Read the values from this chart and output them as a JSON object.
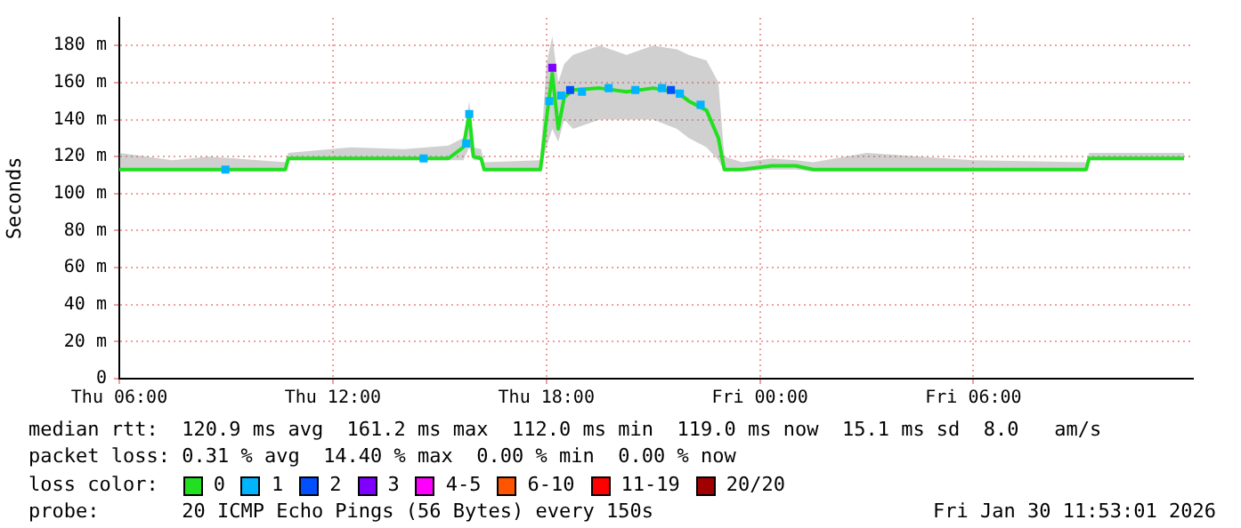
{
  "chart_data": {
    "type": "line",
    "ylabel": "Seconds",
    "xlim": [
      "2026-01-29T06:00",
      "2026-01-30T12:10"
    ],
    "xticks": [
      {
        "value": "2026-01-29T06:00",
        "label": "Thu 06:00"
      },
      {
        "value": "2026-01-29T12:00",
        "label": "Thu 12:00"
      },
      {
        "value": "2026-01-29T18:00",
        "label": "Thu 18:00"
      },
      {
        "value": "2026-01-30T00:00",
        "label": "Fri 00:00"
      },
      {
        "value": "2026-01-30T06:00",
        "label": "Fri 06:00"
      }
    ],
    "ylim": [
      0,
      195
    ],
    "yticks": [
      0,
      {
        "value": 20,
        "label": "20 m"
      },
      {
        "value": 40,
        "label": "40 m"
      },
      {
        "value": 60,
        "label": "60 m"
      },
      {
        "value": 80,
        "label": "80 m"
      },
      {
        "value": 100,
        "label": "100 m"
      },
      {
        "value": 120,
        "label": "120 m"
      },
      {
        "value": 140,
        "label": "140 m"
      },
      {
        "value": 160,
        "label": "160 m"
      },
      {
        "value": 180,
        "label": "180 m"
      }
    ],
    "grid": true,
    "legend": "bottom",
    "legend_title": "loss color:",
    "series": [
      {
        "name": "0",
        "color": "#20e020",
        "x": [
          "2026-01-29T06:00",
          "2026-01-29T07:30",
          "2026-01-29T08:30",
          "2026-01-29T10:40",
          "2026-01-29T10:45",
          "2026-01-29T12:30",
          "2026-01-29T14:00",
          "2026-01-29T15:15",
          "2026-01-29T15:40",
          "2026-01-29T15:50",
          "2026-01-29T15:57",
          "2026-01-29T16:10",
          "2026-01-29T16:15",
          "2026-01-29T17:50",
          "2026-01-29T18:00",
          "2026-01-29T18:10",
          "2026-01-29T18:20",
          "2026-01-29T18:30",
          "2026-01-29T18:45",
          "2026-01-29T19:30",
          "2026-01-29T20:15",
          "2026-01-29T21:00",
          "2026-01-29T21:40",
          "2026-01-29T22:00",
          "2026-01-29T22:30",
          "2026-01-29T22:50",
          "2026-01-29T23:00",
          "2026-01-29T23:30",
          "2026-01-30T00:20",
          "2026-01-30T01:00",
          "2026-01-30T01:30",
          "2026-01-30T03:00",
          "2026-01-30T04:30",
          "2026-01-30T06:00",
          "2026-01-30T09:10",
          "2026-01-30T09:15",
          "2026-01-30T11:55"
        ],
        "values": [
          113,
          113,
          113,
          113,
          119,
          119,
          119,
          119,
          125,
          143,
          120,
          119,
          113,
          113,
          140,
          165,
          135,
          152,
          156,
          157,
          155,
          157,
          155,
          150,
          145,
          130,
          113,
          113,
          115,
          115,
          113,
          113,
          113,
          113,
          113,
          119,
          119
        ],
        "lower": [
          112,
          112,
          112,
          112,
          118,
          118,
          118,
          118,
          118,
          125,
          118,
          118,
          112,
          112,
          125,
          135,
          128,
          140,
          135,
          140,
          140,
          140,
          135,
          130,
          125,
          118,
          112,
          112,
          113,
          113,
          112,
          112,
          112,
          112,
          112,
          118,
          118
        ],
        "upper": [
          122,
          118,
          120,
          117,
          122,
          125,
          124,
          126,
          130,
          150,
          125,
          124,
          117,
          118,
          170,
          185,
          160,
          170,
          175,
          180,
          175,
          180,
          178,
          175,
          172,
          160,
          120,
          117,
          119,
          118,
          117,
          122,
          120,
          118,
          117,
          122,
          122
        ]
      },
      {
        "name": "1",
        "type": "scatter",
        "marker": "square",
        "color": "#00b4ff",
        "x": [
          "2026-01-29T08:59",
          "2026-01-29T14:33",
          "2026-01-29T15:45",
          "2026-01-29T15:50",
          "2026-01-29T18:05",
          "2026-01-29T18:25",
          "2026-01-29T19:00",
          "2026-01-29T19:45",
          "2026-01-29T20:30",
          "2026-01-29T21:15",
          "2026-01-29T21:45",
          "2026-01-29T22:20"
        ],
        "values": [
          113,
          119,
          127,
          143,
          150,
          153,
          155,
          157,
          156,
          157,
          154,
          148
        ]
      },
      {
        "name": "2",
        "type": "scatter",
        "marker": "square",
        "color": "#0050ff",
        "x": [
          "2026-01-29T18:40",
          "2026-01-29T21:30"
        ],
        "values": [
          156,
          156
        ]
      },
      {
        "name": "3",
        "type": "scatter",
        "marker": "square",
        "color": "#8000ff",
        "x": [
          "2026-01-29T18:10"
        ],
        "values": [
          168
        ]
      },
      {
        "name": "4-5",
        "color": "#ff00ff"
      },
      {
        "name": "6-10",
        "color": "#ff5500"
      },
      {
        "name": "11-19",
        "color": "#ff0000"
      },
      {
        "name": "20/20",
        "color": "#a00000"
      }
    ],
    "annotations": [
      "median rtt:  120.9 ms avg  161.2 ms max  112.0 ms min  119.0 ms now  15.1 ms sd  8.0   am/s",
      "packet loss: 0.31 % avg  14.40 % max  0.00 % min  0.00 % now",
      "probe:       20 ICMP Echo Pings (56 Bytes) every 150s",
      "Fri Jan 30 11:53:01 2026"
    ]
  }
}
